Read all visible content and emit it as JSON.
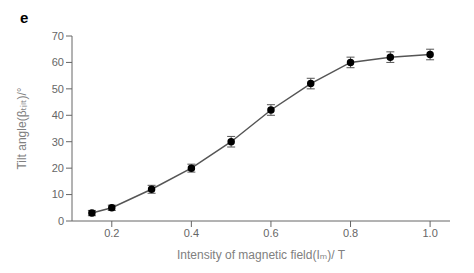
{
  "chart_data": {
    "type": "line",
    "title": "e",
    "xlabel": "Intensity of magnetic field(Iₘ)/ T",
    "ylabel": "Tilt angle(βₜᵢₗₜ)/°",
    "x": [
      0.15,
      0.2,
      0.3,
      0.4,
      0.5,
      0.6,
      0.7,
      0.8,
      0.9,
      1.0
    ],
    "values": [
      3,
      5,
      12,
      20,
      30,
      42,
      52,
      60,
      62,
      63
    ],
    "error_bars": [
      1,
      1,
      1.5,
      1.5,
      2,
      2,
      2,
      2,
      2,
      2
    ],
    "color": "#555555",
    "marker": "circle",
    "line_style": "solid",
    "xlim": [
      0.1,
      1.05
    ],
    "ylim": [
      0,
      70
    ],
    "xticks": [
      0.2,
      0.4,
      0.6,
      0.8,
      {
        "value": 1.0,
        "label": "1.0"
      }
    ],
    "yticks": [
      0,
      10,
      20,
      30,
      40,
      50,
      60,
      70
    ],
    "grid": false
  }
}
